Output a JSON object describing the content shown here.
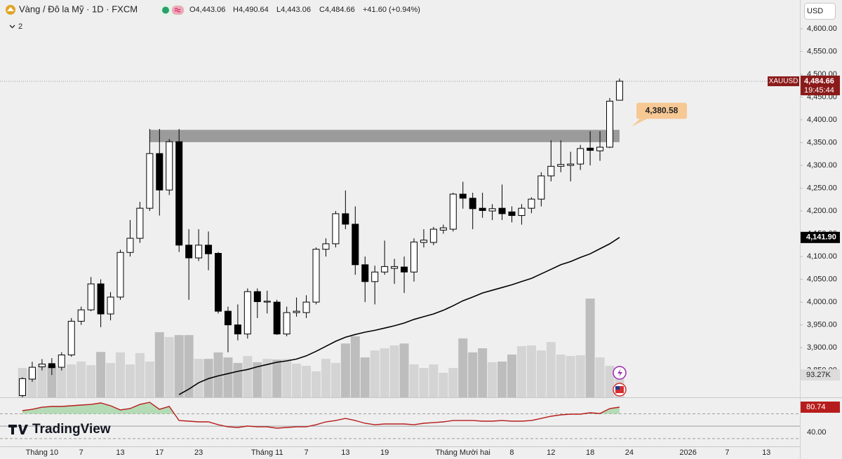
{
  "chart_data": {
    "type": "candlestick",
    "title": "Vàng / Đô la Mỹ · 1D · FXCM",
    "header_values": [
      "O4,443.06",
      "H4,490.64",
      "L4,443.06",
      "C4,484.66",
      "+41.60 (+0.94%)"
    ],
    "indicators_label": "2",
    "currency": "USD",
    "logo": "TradingView",
    "up_color": "#ffffff",
    "down_color": "#000000",
    "open": [
      3795,
      3831,
      3858,
      3865,
      3857,
      3884,
      3958,
      3983,
      4040,
      3974,
      4011,
      4109,
      4140,
      4206,
      4326,
      4246,
      4352,
      4125,
      4097,
      4125,
      4107,
      3980,
      3950,
      3930,
      4023,
      4000,
      4000,
      3930,
      3977,
      3977,
      4000,
      4116,
      4128,
      4194,
      4171,
      4082,
      4045,
      4066,
      4074,
      4077,
      4066,
      4131,
      4131,
      4158,
      4160,
      4237,
      4228,
      4206,
      4200,
      4206,
      4198,
      4190,
      4206,
      4226,
      4277,
      4298,
      4300,
      4303,
      4338,
      4332,
      4340,
      4443.06
    ],
    "high": [
      3835,
      3869,
      3875,
      3877,
      3890,
      3965,
      3990,
      4055,
      4050,
      4022,
      4115,
      4180,
      4220,
      4380,
      4380,
      4358,
      4380,
      4160,
      4160,
      4155,
      4110,
      3990,
      3995,
      4030,
      4030,
      4025,
      4005,
      3990,
      4010,
      4015,
      4120,
      4140,
      4200,
      4245,
      4210,
      4100,
      4080,
      4135,
      4095,
      4100,
      4140,
      4160,
      4165,
      4170,
      4240,
      4264,
      4240,
      4240,
      4215,
      4258,
      4210,
      4215,
      4230,
      4285,
      4355,
      4355,
      4330,
      4345,
      4375,
      4375,
      4448,
      4490.64
    ],
    "low": [
      3790,
      3825,
      3850,
      3840,
      3850,
      3880,
      3950,
      3980,
      3945,
      3960,
      4005,
      4100,
      4130,
      4200,
      4190,
      4235,
      4110,
      4005,
      4090,
      4070,
      3975,
      3890,
      3916,
      3920,
      3965,
      3975,
      3928,
      3925,
      3968,
      3965,
      3995,
      4100,
      4120,
      4160,
      4060,
      4000,
      3995,
      4060,
      4040,
      4020,
      4045,
      4120,
      4125,
      4150,
      4155,
      4205,
      4160,
      4185,
      4180,
      4180,
      4175,
      4170,
      4195,
      4210,
      4265,
      4285,
      4265,
      4290,
      4300,
      4310,
      4338,
      4443.06
    ],
    "close": [
      3832,
      3857,
      3864,
      3856,
      3884,
      3958,
      3983,
      4040,
      3974,
      4011,
      4109,
      4140,
      4206,
      4326,
      4246,
      4352,
      4125,
      4097,
      4125,
      4106,
      3980,
      3950,
      3930,
      4023,
      4001,
      4002,
      3930,
      3977,
      3980,
      4000,
      4116,
      4128,
      4194,
      4171,
      4082,
      4045,
      4066,
      4078,
      4078,
      4066,
      4132,
      4136,
      4160,
      4163,
      4237,
      4228,
      4205,
      4201,
      4205,
      4194,
      4190,
      4206,
      4226,
      4277,
      4298,
      4302,
      4303,
      4337,
      4333,
      4340,
      4441,
      4484.66
    ],
    "volume": [
      122,
      117,
      137,
      131,
      122,
      137,
      149,
      134,
      189,
      143,
      187,
      137,
      184,
      149,
      271,
      251,
      259,
      259,
      160,
      160,
      187,
      166,
      143,
      172,
      146,
      160,
      157,
      160,
      140,
      131,
      108,
      160,
      143,
      224,
      254,
      166,
      195,
      204,
      216,
      224,
      137,
      122,
      137,
      102,
      122,
      245,
      187,
      204,
      146,
      149,
      178,
      213,
      216,
      195,
      230,
      178,
      172,
      175,
      411,
      166,
      131,
      93.27
    ],
    "volume_up_color": "#d4d4d4",
    "volume_down_color": "#bdbdbd",
    "volume_ylim": [
      0,
      1653
    ],
    "volume_label": "93.27K",
    "ma": [
      null,
      null,
      null,
      null,
      null,
      null,
      null,
      null,
      null,
      null,
      null,
      null,
      null,
      null,
      null,
      null,
      3797,
      3809,
      3823,
      3832,
      3838,
      3843,
      3848,
      3852,
      3858,
      3863,
      3868,
      3871,
      3875,
      3882,
      3892,
      3903,
      3914,
      3923,
      3929,
      3934,
      3938,
      3943,
      3948,
      3954,
      3962,
      3968,
      3974,
      3982,
      3992,
      4003,
      4011,
      4020,
      4026,
      4032,
      4038,
      4045,
      4052,
      4062,
      4072,
      4082,
      4089,
      4098,
      4106,
      4117,
      4128,
      4141.9
    ],
    "ma_color": "#000000",
    "ma_label": "4,141.90",
    "zone": [
      4351,
      4378
    ],
    "callout": "4,380.58",
    "last_price": {
      "symbol": "XAUUSD",
      "price": "4,484.66",
      "countdown": "19:45:44",
      "color": "#8b1a1a"
    },
    "xlim": [
      -2.294,
      79.427
    ],
    "xticks": [
      {
        "value": 2,
        "label": "Tháng 10"
      },
      {
        "value": 6,
        "label": "7"
      },
      {
        "value": 10,
        "label": "13"
      },
      {
        "value": 14,
        "label": "17"
      },
      {
        "value": 18,
        "label": "23"
      },
      {
        "value": 25,
        "label": "Tháng 11"
      },
      {
        "value": 29,
        "label": "7"
      },
      {
        "value": 33,
        "label": "13"
      },
      {
        "value": 37,
        "label": "19"
      },
      {
        "value": 45,
        "label": "Tháng Mười hai"
      },
      {
        "value": 50,
        "label": "8"
      },
      {
        "value": 54,
        "label": "12"
      },
      {
        "value": 58,
        "label": "18"
      },
      {
        "value": 62,
        "label": "24"
      },
      {
        "value": 68,
        "label": "2026"
      },
      {
        "value": 72,
        "label": "7"
      },
      {
        "value": 76,
        "label": "13"
      }
    ],
    "ylim": [
      3791,
      4663
    ],
    "yticks": [
      {
        "value": 4600,
        "label": "4,600.00"
      },
      {
        "value": 4550,
        "label": "4,550.00"
      },
      {
        "value": 4500,
        "label": "4,500.00"
      },
      {
        "value": 4450,
        "label": "4,450.00"
      },
      {
        "value": 4400,
        "label": "4,400.00"
      },
      {
        "value": 4350,
        "label": "4,350.00"
      },
      {
        "value": 4300,
        "label": "4,300.00"
      },
      {
        "value": 4250,
        "label": "4,250.00"
      },
      {
        "value": 4200,
        "label": "4,200.00"
      },
      {
        "value": 4150,
        "label": "4,150.00"
      },
      {
        "value": 4100,
        "label": "4,100.00"
      },
      {
        "value": 4050,
        "label": "4,050.00"
      },
      {
        "value": 4000,
        "label": "4,000.00"
      },
      {
        "value": 3950,
        "label": "3,950.00"
      },
      {
        "value": 3900,
        "label": "3,900.00"
      },
      {
        "value": 3850,
        "label": "3,850.00"
      }
    ],
    "rsi": [
      75.1,
      77.3,
      80.7,
      81.9,
      81.9,
      83.0,
      84.1,
      85.2,
      87.5,
      83.0,
      76.2,
      78.5,
      85.2,
      88.6,
      77.3,
      81.9,
      59.2,
      58.1,
      57.0,
      57.0,
      52.4,
      49.0,
      47.9,
      50.2,
      49.0,
      49.0,
      46.8,
      47.9,
      49.0,
      49.0,
      52.4,
      57.0,
      59.2,
      62.6,
      59.2,
      54.7,
      52.4,
      53.6,
      53.6,
      53.6,
      52.4,
      54.7,
      55.8,
      57.0,
      59.2,
      59.2,
      59.2,
      58.1,
      58.1,
      59.2,
      58.1,
      58.1,
      59.2,
      62.6,
      66.0,
      68.3,
      69.4,
      69.4,
      71.7,
      70.5,
      78.5,
      80.74
    ],
    "rsi_color": "#b71c1c",
    "rsi_label": "80.74",
    "rsi_ylim": [
      17.4,
      96.6
    ],
    "rsi_levels": [
      30,
      50,
      70
    ],
    "rsi_ticks": [
      {
        "value": 40,
        "label": "40.00"
      }
    ]
  }
}
